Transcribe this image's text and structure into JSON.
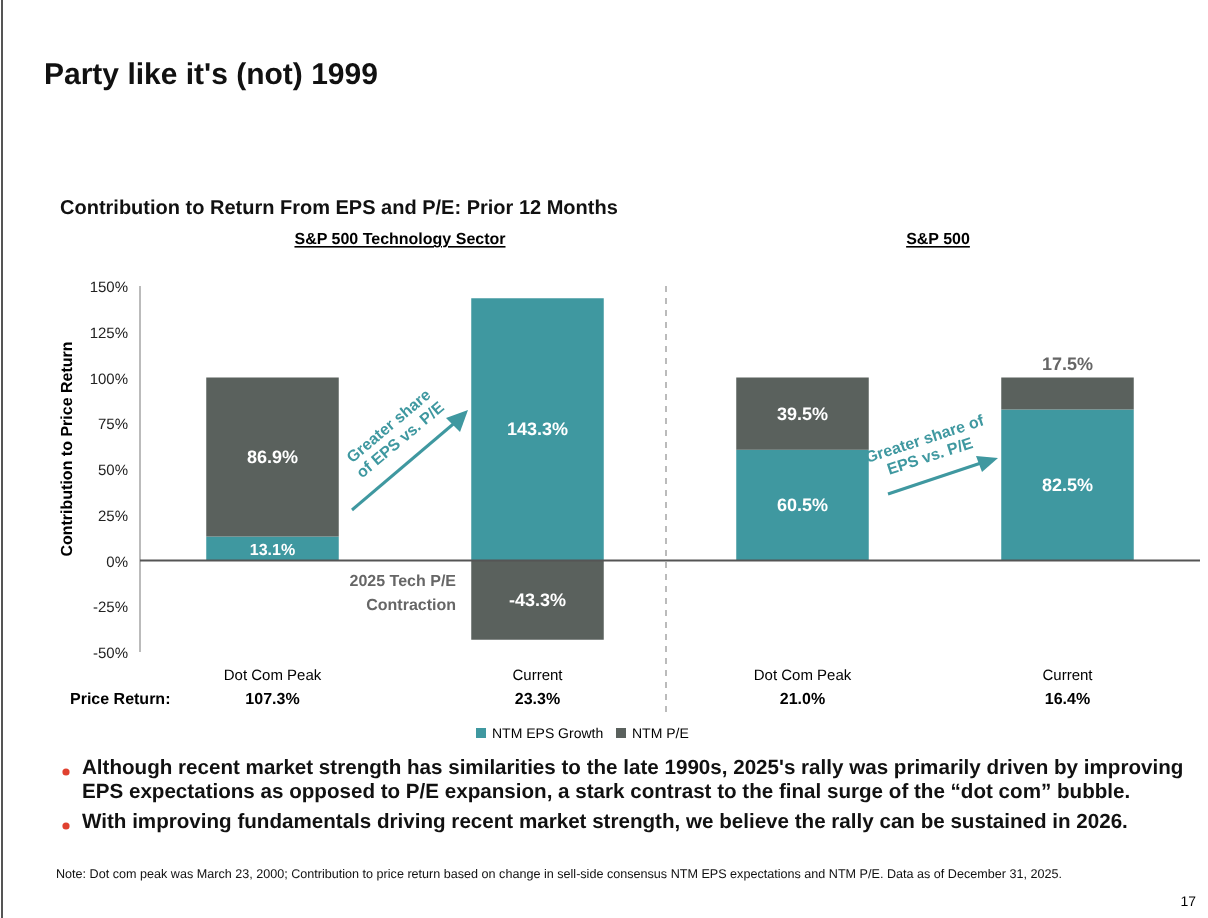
{
  "chart_data": {
    "type": "bar",
    "stacked": true,
    "title": "Party like it's (not) 1999",
    "subtitle": "Contribution to Return From EPS and P/E: Prior 12 Months",
    "ylabel": "Contribution to Price Return",
    "categories": [
      "Dot Com Peak",
      "Current",
      "Dot Com Peak",
      "Current"
    ],
    "series": [
      {
        "name": "NTM EPS Growth",
        "color": "#3f98a0",
        "values": [
          13.1,
          143.3,
          60.5,
          82.5
        ],
        "value_labels": [
          "13.1%",
          "143.3%",
          "60.5%",
          "82.5%"
        ]
      },
      {
        "name": "NTM P/E",
        "color": "#5a615d",
        "values": [
          86.9,
          -43.3,
          39.5,
          17.5
        ],
        "value_labels": [
          "86.9%",
          "-43.3%",
          "39.5%",
          "17.5%"
        ]
      }
    ],
    "ylim": [
      -50,
      150
    ],
    "yticks": [
      {
        "value": -50,
        "label": "-50%"
      },
      {
        "value": -25,
        "label": "-25%"
      },
      {
        "value": 0,
        "label": "0%"
      },
      {
        "value": 25,
        "label": "25%"
      },
      {
        "value": 50,
        "label": "50%"
      },
      {
        "value": 75,
        "label": "75%"
      },
      {
        "value": 100,
        "label": "100%"
      },
      {
        "value": 125,
        "label": "125%"
      },
      {
        "value": 150,
        "label": "150%"
      }
    ],
    "legend": "bottom",
    "annotations": [
      "S&P 500 Technology Sector",
      "S&P 500",
      "Greater share\nof EPS vs. P/E",
      "Greater share of\nEPS vs. P/E",
      "2025 Tech P/E\nContraction",
      "Price Return:",
      "107.3%",
      "23.3%",
      "21.0%",
      "16.4%",
      "Although recent market strength has similarities to the late 1990s, 2025's rally was primarily driven by improving EPS expectations as opposed to P/E expansion, a stark contrast to the final surge of the “dot com” bubble.",
      "With improving fundamentals driving recent market strength, we believe the rally can be sustained in 2026.",
      "Note: Dot com peak was March 23, 2000; Contribution to price return based on change in sell-side consensus NTM EPS expectations and NTM P/E. Data as of December 31, 2025.",
      "17"
    ]
  }
}
